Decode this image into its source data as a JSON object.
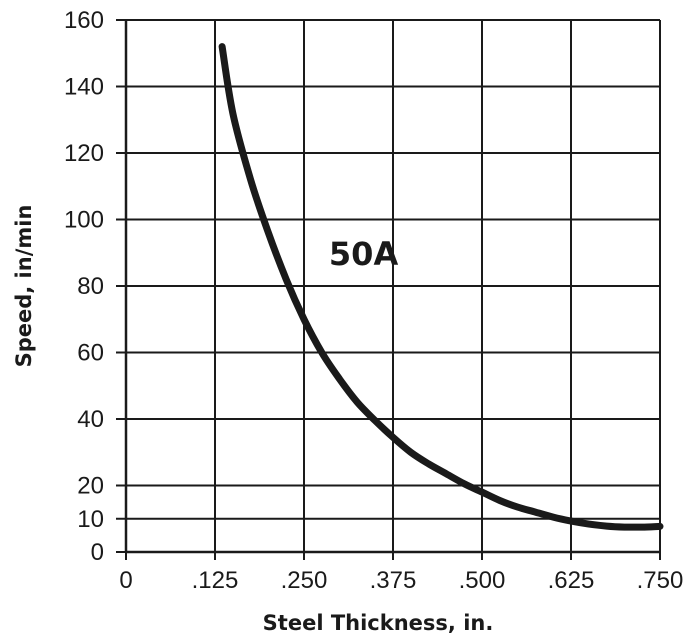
{
  "chart_data": {
    "type": "line",
    "title": "",
    "xlabel": "Steel Thickness, in.",
    "ylabel": "Speed, in/min",
    "xlim": [
      0,
      0.75
    ],
    "ylim": [
      0,
      160
    ],
    "x_ticks": [
      0,
      0.125,
      0.25,
      0.375,
      0.5,
      0.625,
      0.75
    ],
    "x_tick_labels": [
      "0",
      ".125",
      ".250",
      ".375",
      ".500",
      ".625",
      ".750"
    ],
    "y_ticks": [
      0,
      10,
      20,
      40,
      60,
      80,
      100,
      120,
      140,
      160
    ],
    "y_tick_labels": [
      "0",
      "10",
      "20",
      "40",
      "60",
      "80",
      "100",
      "120",
      "140",
      "160"
    ],
    "grid": true,
    "series": [
      {
        "name": "50A",
        "x": [
          0.135,
          0.15,
          0.175,
          0.2,
          0.225,
          0.25,
          0.275,
          0.3,
          0.325,
          0.35,
          0.375,
          0.4,
          0.425,
          0.45,
          0.475,
          0.5,
          0.525,
          0.55,
          0.575,
          0.6,
          0.625,
          0.65,
          0.675,
          0.7,
          0.725,
          0.75
        ],
        "y": [
          152,
          132,
          112,
          96,
          82,
          70,
          60,
          52,
          45,
          39.5,
          34.5,
          30,
          26.5,
          23.5,
          20.5,
          18,
          15.5,
          13.5,
          12,
          10.5,
          9.3,
          8.4,
          7.8,
          7.5,
          7.5,
          7.7
        ]
      }
    ],
    "annotations": [
      {
        "text": "50A",
        "x": 0.285,
        "y": 90
      }
    ],
    "line_color": "#1a1a1a",
    "grid_color": "#1a1a1a"
  }
}
